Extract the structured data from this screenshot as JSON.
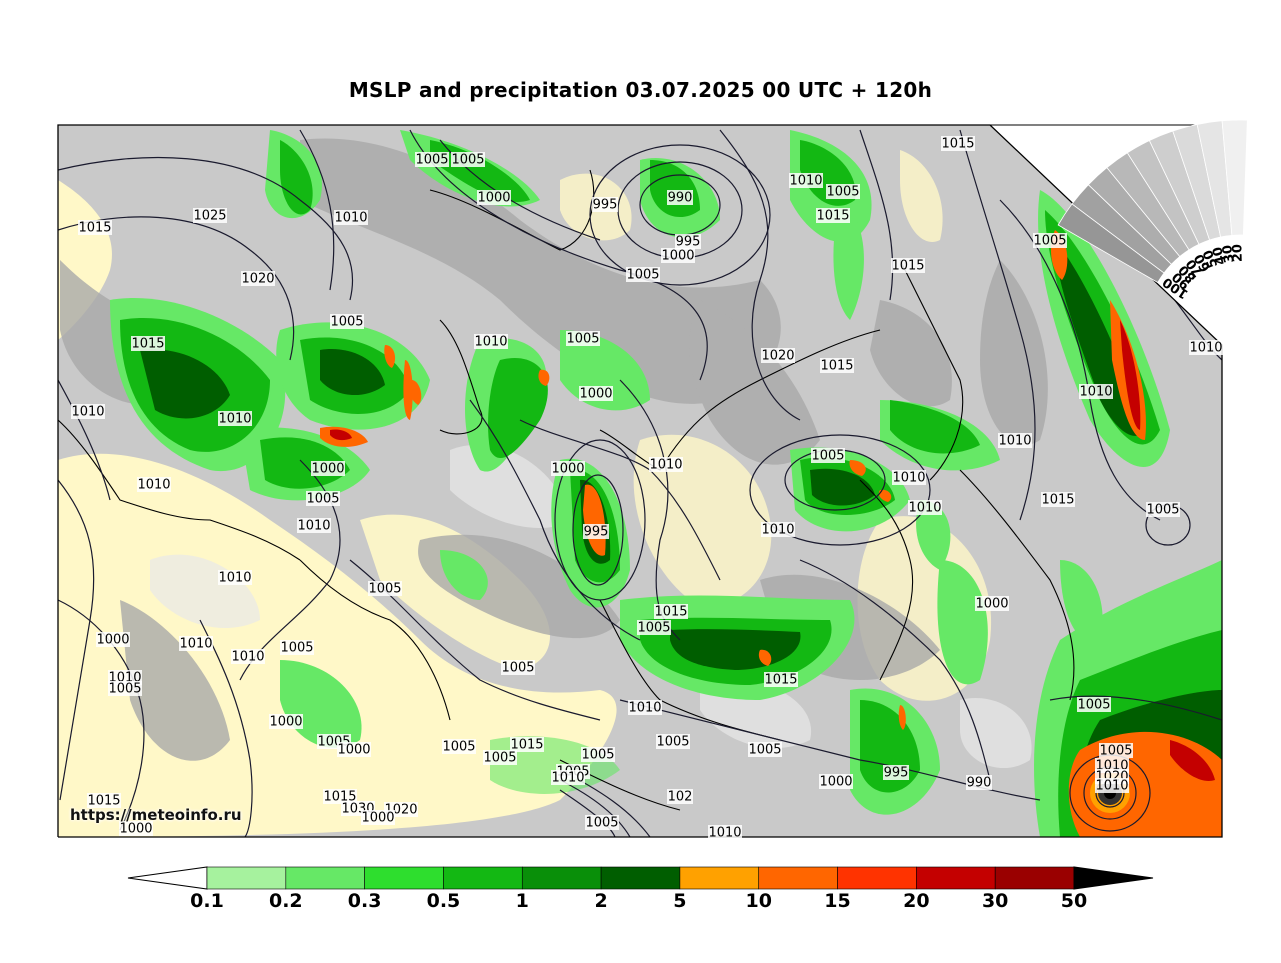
{
  "title": "MSLP and precipitation 03.07.2025 00 UTC + 120h",
  "watermark": "https://meteoinfo.ru",
  "colorbar": {
    "labels": [
      "0.1",
      "0.2",
      "0.3",
      "0.5",
      "1",
      "2",
      "5",
      "10",
      "15",
      "20",
      "30",
      "50"
    ],
    "colors": [
      "#a6f29e",
      "#66e866",
      "#2ede2e",
      "#13b813",
      "#098f09",
      "#005e00",
      "#ffa100",
      "#ff6600",
      "#ff3300",
      "#c40000",
      "#9a0000",
      "#000000"
    ]
  },
  "density_scale": {
    "labels": [
      "100",
      "90",
      "80",
      "70",
      "60",
      "50",
      "40",
      "30",
      "20"
    ]
  },
  "isobar_labels": [
    {
      "t": "1005"
    },
    {
      "t": "1005"
    },
    {
      "t": "1000"
    },
    {
      "t": "995"
    },
    {
      "t": "990"
    },
    {
      "t": "995"
    },
    {
      "t": "1000"
    },
    {
      "t": "1010"
    },
    {
      "t": "1005"
    },
    {
      "t": "1015"
    },
    {
      "t": "1015"
    },
    {
      "t": "1025"
    },
    {
      "t": "1010"
    },
    {
      "t": "1015"
    },
    {
      "t": "1020"
    },
    {
      "t": "1005"
    },
    {
      "t": "1005"
    },
    {
      "t": "1010"
    },
    {
      "t": "1005"
    },
    {
      "t": "1015"
    },
    {
      "t": "1005"
    },
    {
      "t": "1020"
    },
    {
      "t": "1015"
    },
    {
      "t": "1015"
    },
    {
      "t": "1010"
    },
    {
      "t": "1000"
    },
    {
      "t": "1010"
    },
    {
      "t": "1010"
    },
    {
      "t": "1000"
    },
    {
      "t": "1000"
    },
    {
      "t": "1005"
    },
    {
      "t": "1010"
    },
    {
      "t": "1010"
    },
    {
      "t": "995"
    },
    {
      "t": "1010"
    },
    {
      "t": "1005"
    },
    {
      "t": "1010"
    },
    {
      "t": "1010"
    },
    {
      "t": "1015"
    },
    {
      "t": "1010"
    },
    {
      "t": "1005"
    },
    {
      "t": "1010"
    },
    {
      "t": "1010"
    },
    {
      "t": "1005"
    },
    {
      "t": "1000"
    },
    {
      "t": "1015"
    },
    {
      "t": "1005"
    },
    {
      "t": "1005"
    },
    {
      "t": "1010"
    },
    {
      "t": "1010"
    },
    {
      "t": "1000"
    },
    {
      "t": "1005"
    },
    {
      "t": "1015"
    },
    {
      "t": "1010"
    },
    {
      "t": "1005"
    },
    {
      "t": "1010"
    },
    {
      "t": "1005"
    },
    {
      "t": "1000"
    },
    {
      "t": "1005"
    },
    {
      "t": "1000"
    },
    {
      "t": "1005"
    },
    {
      "t": "1015"
    },
    {
      "t": "1005"
    },
    {
      "t": "1005"
    },
    {
      "t": "1005"
    },
    {
      "t": "1005"
    },
    {
      "t": "1005"
    },
    {
      "t": "1000"
    },
    {
      "t": "995"
    },
    {
      "t": "990"
    },
    {
      "t": "1010"
    },
    {
      "t": "1010"
    },
    {
      "t": "1020"
    },
    {
      "t": "1015"
    },
    {
      "t": "1015"
    },
    {
      "t": "1030"
    },
    {
      "t": "1020"
    },
    {
      "t": "1000"
    },
    {
      "t": "1000"
    },
    {
      "t": "1005"
    },
    {
      "t": "1010"
    },
    {
      "t": "1010"
    },
    {
      "t": "1005"
    },
    {
      "t": "102"
    },
    {
      "t": "1010"
    }
  ]
}
